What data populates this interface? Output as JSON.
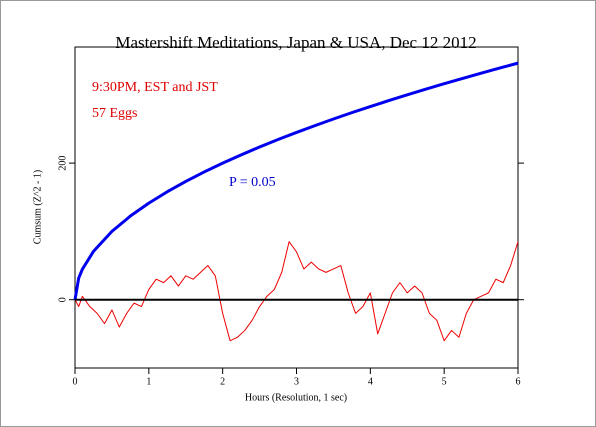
{
  "chart_data": {
    "type": "line",
    "title": "Mastershift Meditations, Japan & USA, Dec 12 2012",
    "annotations": [
      "9:30PM, EST and JST",
      "57 Eggs",
      "P = 0.05"
    ],
    "xlabel": "Hours (Resolution, 1 sec)",
    "ylabel": "Cumsum (Z^2 - 1)",
    "xlim": [
      0,
      6
    ],
    "xticks": [
      0,
      1,
      2,
      3,
      4,
      5,
      6
    ],
    "ylim": [
      -100,
      370
    ],
    "yticks": [
      0,
      200
    ],
    "hline": 0,
    "series": [
      {
        "name": "P = 0.05",
        "color": "#0000ee",
        "x": [
          0,
          0.05,
          0.1,
          0.25,
          0.5,
          0.75,
          1,
          1.25,
          1.5,
          1.75,
          2,
          2.25,
          2.5,
          2.75,
          3,
          3.25,
          3.5,
          3.75,
          4,
          4.25,
          4.5,
          4.75,
          5,
          5.25,
          5.5,
          5.75,
          6
        ],
        "values": [
          0,
          31.6,
          44.7,
          70.7,
          100,
          122.5,
          141.4,
          158.1,
          173.2,
          187.1,
          200,
          212.1,
          223.6,
          234.5,
          244.9,
          254.9,
          264.6,
          273.9,
          282.8,
          291.5,
          300,
          308.2,
          316.2,
          324,
          331.7,
          339.1,
          346.4
        ]
      },
      {
        "name": "57 Eggs",
        "color": "#ee0000",
        "x": [
          0,
          0.05,
          0.1,
          0.2,
          0.3,
          0.4,
          0.5,
          0.6,
          0.7,
          0.8,
          0.9,
          1.0,
          1.1,
          1.2,
          1.3,
          1.4,
          1.5,
          1.6,
          1.7,
          1.8,
          1.9,
          2.0,
          2.1,
          2.2,
          2.3,
          2.4,
          2.5,
          2.6,
          2.7,
          2.8,
          2.9,
          3.0,
          3.1,
          3.2,
          3.3,
          3.4,
          3.5,
          3.6,
          3.7,
          3.8,
          3.9,
          4.0,
          4.1,
          4.2,
          4.3,
          4.4,
          4.5,
          4.6,
          4.7,
          4.8,
          4.9,
          5.0,
          5.1,
          5.2,
          5.3,
          5.4,
          5.5,
          5.6,
          5.7,
          5.8,
          5.9,
          6.0
        ],
        "values": [
          0,
          -10,
          5,
          -10,
          -20,
          -35,
          -15,
          -40,
          -20,
          -5,
          -10,
          15,
          30,
          25,
          35,
          20,
          35,
          30,
          40,
          50,
          35,
          -20,
          -60,
          -55,
          -45,
          -30,
          -10,
          5,
          15,
          40,
          85,
          70,
          45,
          55,
          45,
          40,
          45,
          50,
          10,
          -20,
          -10,
          10,
          -50,
          -20,
          10,
          25,
          10,
          20,
          10,
          -20,
          -30,
          -60,
          -45,
          -55,
          -20,
          0,
          5,
          10,
          30,
          25,
          50,
          85
        ]
      }
    ]
  }
}
